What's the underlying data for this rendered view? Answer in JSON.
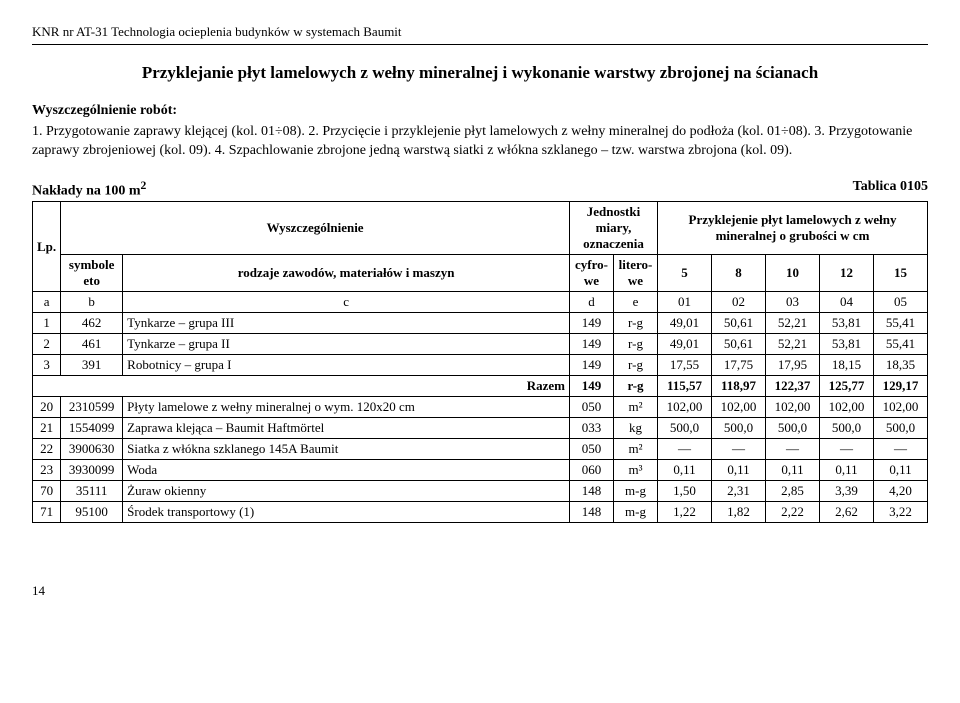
{
  "doc_header": "KNR nr AT-31 Technologia ocieplenia budynków w systemach Baumit",
  "title": "Przyklejanie płyt lamelowych z wełny mineralnej i wykonanie warstwy zbrojonej na ścianach",
  "subheading": "Wyszczególnienie robót:",
  "steps_text": "1. Przygotowanie zaprawy klejącej (kol. 01÷08).   2. Przycięcie i przyklejenie płyt lamelowych z wełny mineralnej do podłoża (kol. 01÷08).   3. Przygotowanie zaprawy zbrojeniowej (kol. 09).   4. Szpachlowanie zbrojone jedną warstwą siatki z włókna szklanego – tzw. warstwa zbrojona (kol. 09).",
  "table_caption_left": "Nakłady na 100 m",
  "table_caption_left_sup": "2",
  "table_caption_right": "Tablica 0105",
  "header": {
    "lp": "Lp.",
    "wyszcz": "Wyszczególnienie",
    "jednostki": "Jednostki miary, oznaczenia",
    "group_label": "Przyklejenie płyt lamelowych z wełny mineralnej o grubości w cm",
    "symbole": "symbole eto",
    "rodzaje": "rodzaje zawodów, materiałów i maszyn",
    "cyfrowe": "cyfro-we",
    "literowe": "litero-we",
    "cols": [
      "5",
      "8",
      "10",
      "12",
      "15"
    ],
    "letters": [
      "a",
      "b",
      "c",
      "d",
      "e",
      "01",
      "02",
      "03",
      "04",
      "05"
    ]
  },
  "rows": [
    {
      "lp": "1",
      "sym": "462",
      "name": "Tynkarze – grupa III",
      "c": "149",
      "l": "r-g",
      "v": [
        "49,01",
        "50,61",
        "52,21",
        "53,81",
        "55,41"
      ]
    },
    {
      "lp": "2",
      "sym": "461",
      "name": "Tynkarze – grupa II",
      "c": "149",
      "l": "r-g",
      "v": [
        "49,01",
        "50,61",
        "52,21",
        "53,81",
        "55,41"
      ]
    },
    {
      "lp": "3",
      "sym": "391",
      "name": "Robotnicy – grupa I",
      "c": "149",
      "l": "r-g",
      "v": [
        "17,55",
        "17,75",
        "17,95",
        "18,15",
        "18,35"
      ]
    }
  ],
  "razem_label": "Razem",
  "razem": {
    "c": "149",
    "l": "r-g",
    "v": [
      "115,57",
      "118,97",
      "122,37",
      "125,77",
      "129,17"
    ]
  },
  "rows2": [
    {
      "lp": "20",
      "sym": "2310599",
      "name": "Płyty lamelowe z wełny mineralnej o wym. 120x20 cm",
      "c": "050",
      "l": "m²",
      "v": [
        "102,00",
        "102,00",
        "102,00",
        "102,00",
        "102,00"
      ]
    },
    {
      "lp": "21",
      "sym": "1554099",
      "name": "Zaprawa klejąca – Baumit Haftmörtel",
      "c": "033",
      "l": "kg",
      "v": [
        "500,0",
        "500,0",
        "500,0",
        "500,0",
        "500,0"
      ]
    },
    {
      "lp": "22",
      "sym": "3900630",
      "name": "Siatka z włókna szklanego 145A Baumit",
      "c": "050",
      "l": "m²",
      "v": [
        "—",
        "—",
        "—",
        "—",
        "—"
      ]
    },
    {
      "lp": "23",
      "sym": "3930099",
      "name": "Woda",
      "c": "060",
      "l": "m³",
      "v": [
        "0,11",
        "0,11",
        "0,11",
        "0,11",
        "0,11"
      ]
    }
  ],
  "rows3": [
    {
      "lp": "70",
      "sym": "35111",
      "name": "Żuraw okienny",
      "c": "148",
      "l": "m-g",
      "v": [
        "1,50",
        "2,31",
        "2,85",
        "3,39",
        "4,20"
      ]
    },
    {
      "lp": "71",
      "sym": "95100",
      "name": "Środek transportowy (1)",
      "c": "148",
      "l": "m-g",
      "v": [
        "1,22",
        "1,82",
        "2,22",
        "2,62",
        "3,22"
      ]
    }
  ],
  "page_num": "14"
}
